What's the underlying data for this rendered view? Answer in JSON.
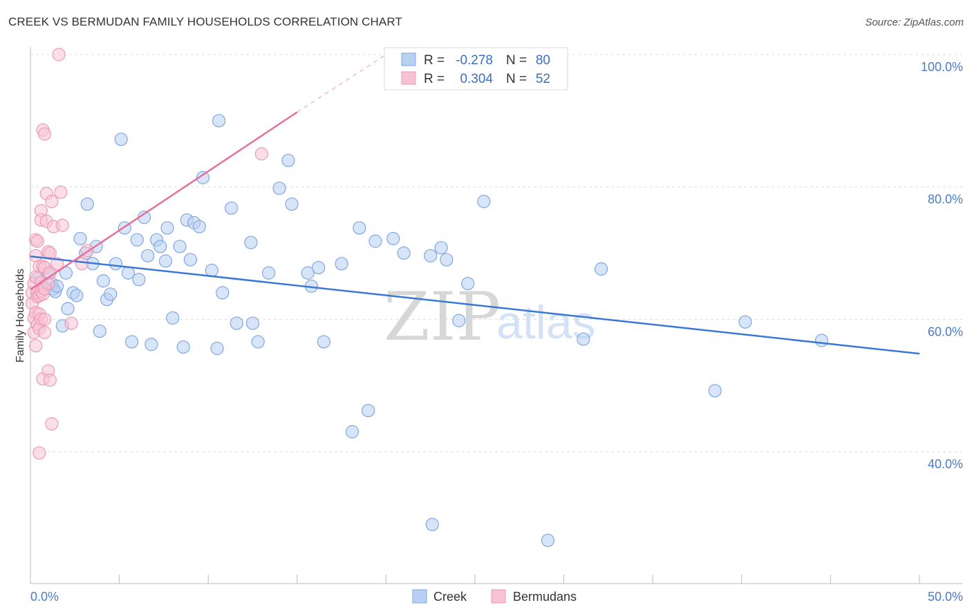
{
  "title": "CREEK VS BERMUDAN FAMILY HOUSEHOLDS CORRELATION CHART",
  "source": "Source: ZipAtlas.com",
  "watermark": {
    "zip": "ZIP",
    "atlas": "atlas"
  },
  "colors": {
    "creek": "#3a78d6",
    "creek_fill": "#b8d0f2",
    "bermudans": "#e57098",
    "bermudans_fill": "#f7c2d3",
    "tick": "#4a7cc9",
    "grid": "#dddddd"
  },
  "legend": {
    "creek": {
      "r_label": "R =",
      "r_value": "-0.278",
      "n_label": "N =",
      "n_value": "80"
    },
    "bermudans": {
      "r_label": "R =",
      "r_value": "0.304",
      "n_label": "N =",
      "n_value": "52"
    }
  },
  "chart_data": {
    "type": "scatter",
    "title": "CREEK VS BERMUDAN FAMILY HOUSEHOLDS CORRELATION CHART",
    "xlabel": "",
    "ylabel": "Family Households",
    "xlim": [
      0,
      50
    ],
    "ylim": [
      20,
      102
    ],
    "x_tick_labels": [
      "0.0%",
      "50.0%"
    ],
    "y_ticks": [
      40,
      60,
      80,
      100
    ],
    "y_tick_labels": [
      "40.0%",
      "60.0%",
      "80.0%",
      "100.0%"
    ],
    "grid": true,
    "legend_position": "top-center",
    "series": [
      {
        "name": "Creek",
        "r": -0.278,
        "n": 80,
        "trend": {
          "x": [
            0,
            50
          ],
          "y": [
            69.5,
            54.8
          ]
        },
        "points": [
          [
            0.4,
            66.2
          ],
          [
            0.6,
            64.2
          ],
          [
            0.8,
            64.6
          ],
          [
            1.0,
            67.0
          ],
          [
            1.2,
            65.4
          ],
          [
            1.3,
            64.6
          ],
          [
            1.4,
            64.2
          ],
          [
            1.5,
            65.0
          ],
          [
            1.8,
            59.0
          ],
          [
            2.0,
            67.0
          ],
          [
            2.1,
            61.6
          ],
          [
            2.4,
            64.0
          ],
          [
            2.6,
            63.6
          ],
          [
            2.8,
            72.2
          ],
          [
            3.1,
            70.0
          ],
          [
            3.2,
            77.4
          ],
          [
            3.5,
            68.4
          ],
          [
            3.7,
            71.0
          ],
          [
            3.9,
            58.2
          ],
          [
            4.1,
            65.8
          ],
          [
            4.3,
            63.0
          ],
          [
            4.5,
            63.8
          ],
          [
            4.8,
            68.4
          ],
          [
            5.1,
            87.2
          ],
          [
            5.3,
            73.8
          ],
          [
            5.5,
            67.0
          ],
          [
            5.7,
            56.6
          ],
          [
            6.0,
            72.0
          ],
          [
            6.1,
            66.0
          ],
          [
            6.4,
            75.4
          ],
          [
            6.6,
            69.6
          ],
          [
            6.8,
            56.2
          ],
          [
            7.1,
            72.0
          ],
          [
            7.3,
            71.0
          ],
          [
            7.6,
            68.8
          ],
          [
            7.7,
            73.8
          ],
          [
            8.0,
            60.2
          ],
          [
            8.4,
            71.0
          ],
          [
            8.6,
            55.8
          ],
          [
            8.8,
            75.0
          ],
          [
            9.0,
            69.0
          ],
          [
            9.2,
            74.6
          ],
          [
            9.5,
            74.0
          ],
          [
            9.7,
            81.4
          ],
          [
            10.2,
            67.4
          ],
          [
            10.5,
            55.6
          ],
          [
            10.6,
            90.0
          ],
          [
            10.8,
            64.0
          ],
          [
            11.3,
            76.8
          ],
          [
            11.6,
            59.4
          ],
          [
            12.4,
            71.6
          ],
          [
            12.8,
            56.6
          ],
          [
            12.5,
            59.4
          ],
          [
            13.4,
            67.0
          ],
          [
            14.0,
            79.8
          ],
          [
            14.5,
            84.0
          ],
          [
            14.7,
            77.4
          ],
          [
            15.6,
            67.0
          ],
          [
            15.8,
            65.0
          ],
          [
            16.2,
            67.8
          ],
          [
            16.5,
            56.6
          ],
          [
            17.5,
            68.4
          ],
          [
            18.1,
            43.0
          ],
          [
            18.5,
            73.8
          ],
          [
            19.0,
            46.2
          ],
          [
            19.4,
            71.8
          ],
          [
            20.4,
            72.2
          ],
          [
            21.0,
            70.0
          ],
          [
            22.6,
            29.0
          ],
          [
            22.5,
            69.6
          ],
          [
            23.1,
            70.8
          ],
          [
            23.4,
            69.0
          ],
          [
            24.1,
            59.8
          ],
          [
            24.6,
            65.4
          ],
          [
            25.5,
            77.8
          ],
          [
            29.1,
            26.6
          ],
          [
            31.1,
            57.0
          ],
          [
            32.1,
            67.6
          ],
          [
            38.5,
            49.2
          ],
          [
            40.2,
            59.6
          ],
          [
            44.5,
            56.8
          ]
        ]
      },
      {
        "name": "Bermudans",
        "r": 0.304,
        "n": 52,
        "trend": {
          "x": [
            0,
            15
          ],
          "y": [
            64.5,
            91.3
          ]
        },
        "trend_dashed": {
          "x": [
            15,
            20
          ],
          "y": [
            91.3,
            100.0
          ]
        },
        "points": [
          [
            0.1,
            64.0
          ],
          [
            0.1,
            62.4
          ],
          [
            0.2,
            60.2
          ],
          [
            0.2,
            58.0
          ],
          [
            0.2,
            65.4
          ],
          [
            0.3,
            69.6
          ],
          [
            0.3,
            72.0
          ],
          [
            0.3,
            66.4
          ],
          [
            0.3,
            61.0
          ],
          [
            0.3,
            56.0
          ],
          [
            0.4,
            59.2
          ],
          [
            0.4,
            64.0
          ],
          [
            0.4,
            71.8
          ],
          [
            0.4,
            63.4
          ],
          [
            0.5,
            39.8
          ],
          [
            0.5,
            63.6
          ],
          [
            0.5,
            58.6
          ],
          [
            0.5,
            68.0
          ],
          [
            0.5,
            60.8
          ],
          [
            0.6,
            76.4
          ],
          [
            0.6,
            75.0
          ],
          [
            0.6,
            65.6
          ],
          [
            0.6,
            64.2
          ],
          [
            0.6,
            60.0
          ],
          [
            0.7,
            88.6
          ],
          [
            0.7,
            68.0
          ],
          [
            0.7,
            63.8
          ],
          [
            0.7,
            51.0
          ],
          [
            0.8,
            88.0
          ],
          [
            0.8,
            67.8
          ],
          [
            0.8,
            64.6
          ],
          [
            0.8,
            60.0
          ],
          [
            0.8,
            58.0
          ],
          [
            0.9,
            79.0
          ],
          [
            0.9,
            74.8
          ],
          [
            1.0,
            70.2
          ],
          [
            1.0,
            65.4
          ],
          [
            1.0,
            52.2
          ],
          [
            1.1,
            50.8
          ],
          [
            1.1,
            70.0
          ],
          [
            1.2,
            77.8
          ],
          [
            1.2,
            44.2
          ],
          [
            1.3,
            74.0
          ],
          [
            1.5,
            68.4
          ],
          [
            1.6,
            100.0
          ],
          [
            1.7,
            79.2
          ],
          [
            1.8,
            74.2
          ],
          [
            2.3,
            59.4
          ],
          [
            2.9,
            68.4
          ],
          [
            3.2,
            70.4
          ],
          [
            13.0,
            85.0
          ],
          [
            1.1,
            67.0
          ]
        ]
      }
    ]
  },
  "bottom_legend": {
    "creek": "Creek",
    "bermudans": "Bermudans"
  }
}
